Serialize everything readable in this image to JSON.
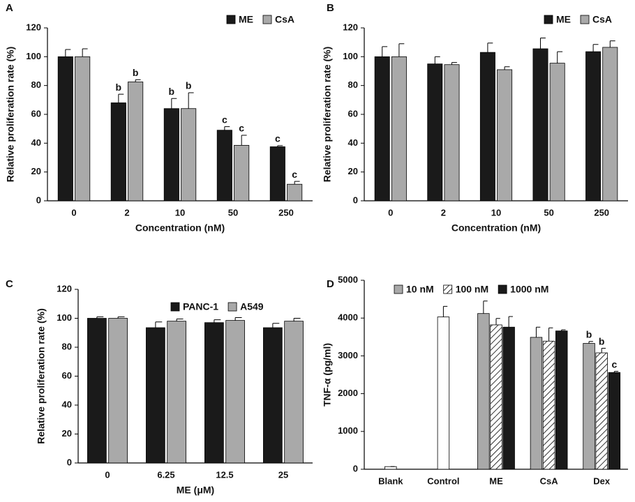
{
  "chart_data": [
    {
      "type": "bar",
      "panel": "A",
      "y_label": "Relative proliferation rate (%)",
      "x_label": "Concentration (nM)",
      "categories": [
        "0",
        "2",
        "10",
        "50",
        "250"
      ],
      "series": [
        {
          "name": "ME",
          "color": "#1a1a1a",
          "values": [
            100,
            68,
            64,
            49,
            37.5
          ],
          "errors": [
            5,
            6,
            7,
            2.5,
            0.8
          ],
          "labels": [
            null,
            "b",
            "b",
            "c",
            "c"
          ]
        },
        {
          "name": "CsA",
          "color": "#a9a9a9",
          "values": [
            100,
            82.5,
            64,
            38.5,
            11.5
          ],
          "errors": [
            5.5,
            1.5,
            11,
            7,
            2
          ],
          "labels": [
            null,
            "b",
            "b",
            "c",
            "c"
          ]
        }
      ],
      "ylim": [
        0,
        120
      ],
      "yticks": [
        0,
        20,
        40,
        60,
        80,
        100,
        120
      ]
    },
    {
      "type": "bar",
      "panel": "B",
      "y_label": "Relative proliferation rate (%)",
      "x_label": "Concentration (nM)",
      "categories": [
        "0",
        "2",
        "10",
        "50",
        "250"
      ],
      "series": [
        {
          "name": "ME",
          "color": "#1a1a1a",
          "values": [
            100,
            95,
            103,
            105.5,
            103.5
          ],
          "errors": [
            7,
            5,
            6.5,
            7.5,
            5
          ]
        },
        {
          "name": "CsA",
          "color": "#a9a9a9",
          "values": [
            100,
            94.5,
            91,
            95.5,
            106.5
          ],
          "errors": [
            9,
            1.5,
            2,
            8,
            4.5
          ]
        }
      ],
      "ylim": [
        0,
        120
      ],
      "yticks": [
        0,
        20,
        40,
        60,
        80,
        100,
        120
      ]
    },
    {
      "type": "bar",
      "panel": "C",
      "y_label": "Relative proliferation rate (%)",
      "x_label": "ME (μM)",
      "categories": [
        "0",
        "6.25",
        "12.5",
        "25"
      ],
      "series": [
        {
          "name": "PANC-1",
          "color": "#1a1a1a",
          "values": [
            100,
            93.5,
            97,
            93.5
          ],
          "errors": [
            1,
            4,
            2,
            3
          ]
        },
        {
          "name": "A549",
          "color": "#a9a9a9",
          "values": [
            100,
            98,
            98.5,
            98
          ],
          "errors": [
            1,
            1.5,
            2,
            2
          ]
        }
      ],
      "ylim": [
        0,
        120
      ],
      "yticks": [
        0,
        20,
        40,
        60,
        80,
        100,
        120
      ]
    },
    {
      "type": "bar",
      "panel": "D",
      "y_label": "TNF-α (pg/ml)",
      "categories": [
        "Blank",
        "Control",
        "ME",
        "CsA",
        "Dex"
      ],
      "single": {
        "color": "#ffffff",
        "values": [
          70,
          4030,
          null,
          null,
          null
        ],
        "errors": [
          0,
          280,
          null,
          null,
          null
        ]
      },
      "series": [
        {
          "name": "10 nM",
          "color": "#a9a9a9",
          "values": [
            null,
            null,
            4120,
            3490,
            3330
          ],
          "errors": [
            null,
            null,
            330,
            270,
            50
          ],
          "labels": [
            null,
            null,
            null,
            null,
            "b"
          ]
        },
        {
          "name": "100 nM",
          "color": "#ffffff",
          "pattern": "hatch",
          "values": [
            null,
            null,
            3820,
            3390,
            3080
          ],
          "errors": [
            null,
            null,
            170,
            350,
            120
          ],
          "labels": [
            null,
            null,
            null,
            null,
            "b"
          ]
        },
        {
          "name": "1000 nM",
          "color": "#1a1a1a",
          "values": [
            null,
            null,
            3760,
            3660,
            2560
          ],
          "errors": [
            null,
            null,
            280,
            30,
            30
          ],
          "labels": [
            null,
            null,
            null,
            null,
            "c"
          ]
        }
      ],
      "ylim": [
        0,
        5000
      ],
      "yticks": [
        0,
        1000,
        2000,
        3000,
        4000,
        5000
      ]
    }
  ]
}
